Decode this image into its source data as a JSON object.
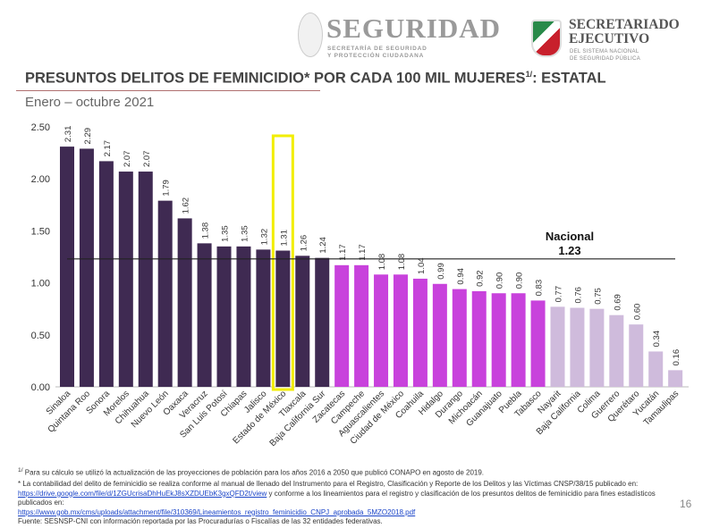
{
  "header": {
    "logo_left": {
      "title": "SEGURIDAD",
      "subtitle_line1": "SECRETARÍA DE SEGURIDAD",
      "subtitle_line2": "Y PROTECCIÓN CIUDADANA"
    },
    "logo_right": {
      "title_line1": "SECRETARIADO",
      "title_line2": "EJECUTIVO",
      "subtitle_line1": "DEL SISTEMA NACIONAL",
      "subtitle_line2": "DE SEGURIDAD PÚBLICA"
    }
  },
  "slide": {
    "title": "PRESUNTOS DELITOS DE FEMINICIDIO* POR CADA 100 MIL MUJERES",
    "title_sup": "1/",
    "title_suffix": ": ESTATAL",
    "subtitle": "Enero – octubre 2021",
    "page_number": "16"
  },
  "chart_data": {
    "type": "bar",
    "title": "",
    "xlabel": "",
    "ylabel": "",
    "ylim": [
      0,
      2.5
    ],
    "yticks": [
      "0.00",
      "0.50",
      "1.00",
      "1.50",
      "2.00",
      "2.50"
    ],
    "grid": false,
    "categories": [
      "Sinaloa",
      "Quintana Roo",
      "Sonora",
      "Morelos",
      "Chihuahua",
      "Nuevo León",
      "Oaxaca",
      "Veracruz",
      "San Luis Potosí",
      "Chiapas",
      "Jalisco",
      "Estado de México",
      "Tlaxcala",
      "Baja California Sur",
      "Zacatecas",
      "Campeche",
      "Aguascalientes",
      "Ciudad de México",
      "Coahuila",
      "Hidalgo",
      "Durango",
      "Michoacán",
      "Guanajuato",
      "Puebla",
      "Tabasco",
      "Nayarit",
      "Baja California",
      "Colima",
      "Guerrero",
      "Querétaro",
      "Yucatán",
      "Tamaulipas"
    ],
    "values": [
      2.31,
      2.29,
      2.17,
      2.07,
      2.07,
      1.79,
      1.62,
      1.38,
      1.35,
      1.35,
      1.32,
      1.31,
      1.26,
      1.24,
      1.17,
      1.17,
      1.08,
      1.08,
      1.04,
      0.99,
      0.94,
      0.92,
      0.9,
      0.9,
      0.83,
      0.77,
      0.76,
      0.75,
      0.69,
      0.6,
      0.34,
      0.16
    ],
    "groups": [
      "high",
      "high",
      "high",
      "high",
      "high",
      "high",
      "high",
      "high",
      "high",
      "high",
      "high",
      "high",
      "high",
      "high",
      "mid",
      "mid",
      "mid",
      "mid",
      "mid",
      "mid",
      "mid",
      "mid",
      "mid",
      "mid",
      "mid",
      "low",
      "low",
      "low",
      "low",
      "low",
      "low",
      "low"
    ],
    "colors": {
      "high": "#3f2a52",
      "mid": "#c842dc",
      "low": "#cfbbdc",
      "highlight_box": "#f2ee00",
      "reference_line": "#222222"
    },
    "highlighted_category": "Estado de México",
    "reference": {
      "label": "Nacional",
      "value": 1.23,
      "value_label": "1.23"
    }
  },
  "footnotes": {
    "note1_sup": "1/",
    "note1": "Para su cálculo se utilizó la actualización de las proyecciones de población para los años 2016 a 2050 que publicó CONAPO en agosto de 2019.",
    "note2_a": "* La contabilidad del delito de feminicidio se realiza conforme al manual de llenado del Instrumento para el Registro, Clasificación y Reporte de los Delitos y las Víctimas CNSP/38/15 publicado en: ",
    "note2_link1": "https://drive.google.com/file/d/1ZGUcrisaDhHuEkJ8sXZDUEbK3gxQFD2t/view",
    "note2_b": " y conforme a los lineamientos para el registro y clasificación de los presuntos delitos de feminicidio para fines estadísticos publicados en:",
    "note2_link2": "https://www.gob.mx/cms/uploads/attachment/file/310369/Lineamientos_registro_feminicidio_CNPJ_aprobada_5MZO2018.pdf",
    "source": "Fuente: SESNSP-CNI con información reportada por las Procuradurías o Fiscalías de las 32 entidades federativas."
  }
}
